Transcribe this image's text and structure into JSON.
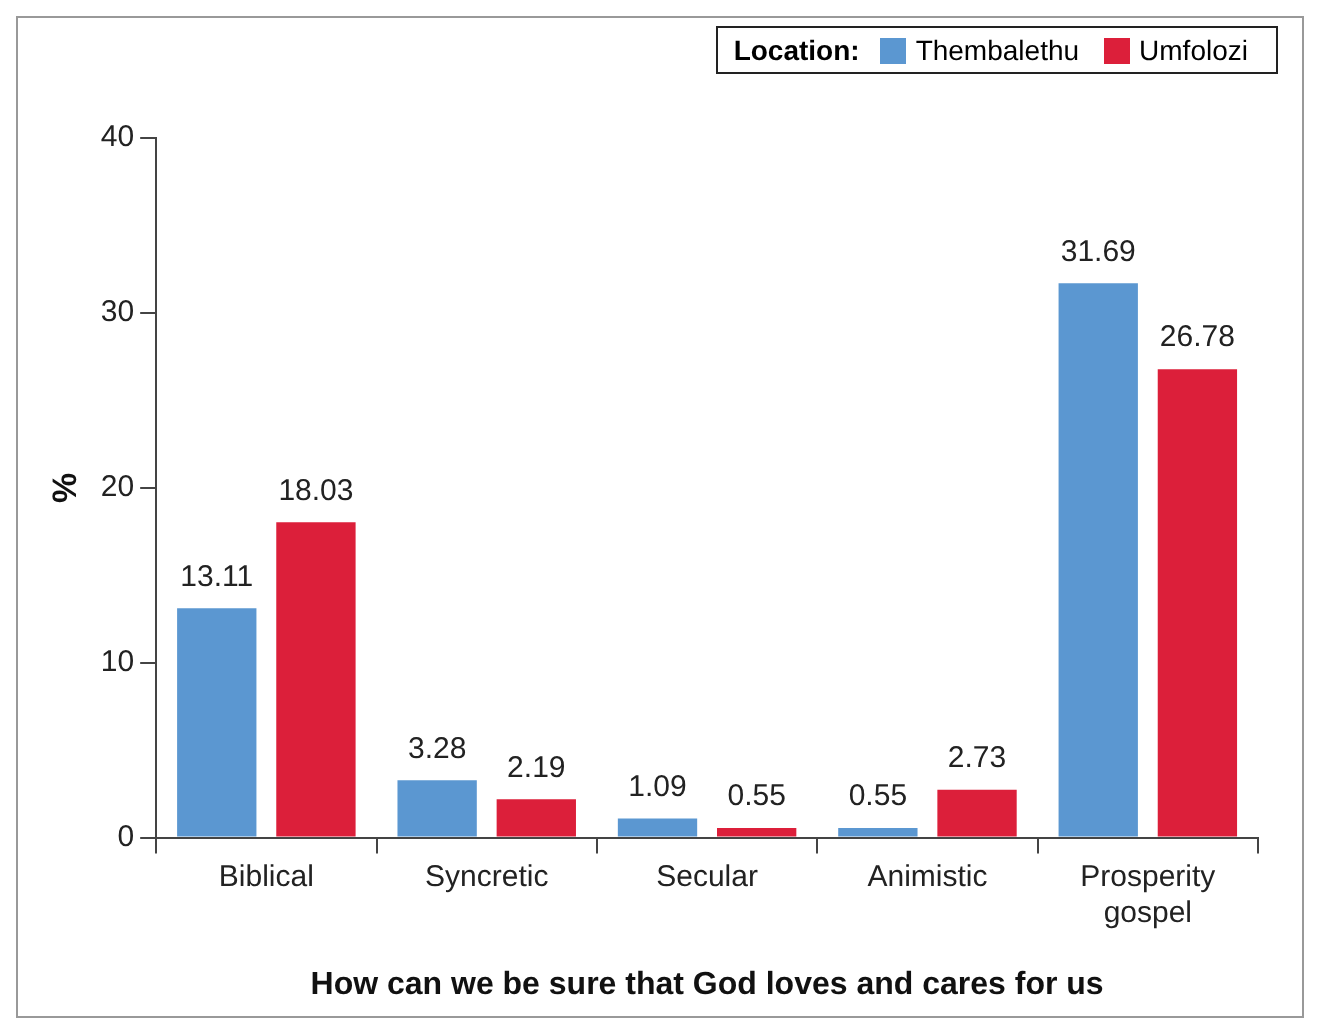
{
  "chart_data": {
    "type": "bar",
    "xlabel": "How can we be sure that God loves and cares for us",
    "ylabel": "%",
    "legend_title": "Location:",
    "legend": "top right",
    "categories": [
      "Biblical",
      "Syncretic",
      "Secular",
      "Animistic",
      "Prosperity gospel"
    ],
    "series": [
      {
        "name": "Thembalethu",
        "color": "#5b97d1",
        "values": [
          13.11,
          3.28,
          1.09,
          0.55,
          31.69
        ]
      },
      {
        "name": "Umfolozi",
        "color": "#dc1f3a",
        "values": [
          18.03,
          2.19,
          0.55,
          2.73,
          26.78
        ]
      }
    ],
    "ylim": [
      0,
      40
    ],
    "yticks": [
      0,
      10,
      20,
      30,
      40
    ],
    "data_labels": true
  }
}
